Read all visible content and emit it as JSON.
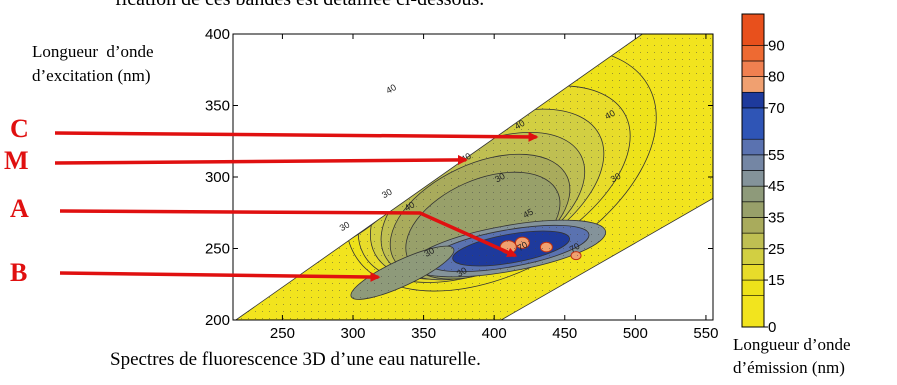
{
  "page": {
    "top_text": "fication de ces bandes est détaillée ci-dessous.",
    "caption": "Spectres de fluorescence 3D d’une eau naturelle."
  },
  "chart_data": {
    "type": "heatmap",
    "title": "",
    "ylabel": [
      "Longueur  d’onde",
      "d’excitation (nm)"
    ],
    "xlabel": [
      "Longueur d’onde",
      "d’émission (nm)"
    ],
    "xlim": [
      215,
      555
    ],
    "ylim": [
      200,
      400
    ],
    "x_ticks": [
      250,
      300,
      350,
      400,
      450,
      500,
      550
    ],
    "y_ticks": [
      200,
      250,
      300,
      350,
      400
    ],
    "colorbar": {
      "ticks": [
        0,
        15,
        25,
        35,
        45,
        55,
        70,
        80,
        90
      ],
      "levels": [
        0,
        10,
        15,
        20,
        25,
        30,
        35,
        40,
        45,
        50,
        55,
        60,
        70,
        75,
        80,
        85,
        90,
        100
      ],
      "colors": [
        "#f2e41e",
        "#eee21a",
        "#e8dc2a",
        "#d2cf42",
        "#bfbf52",
        "#a9ab5c",
        "#98a06a",
        "#8e9a7a",
        "#84939a",
        "#7486a4",
        "#5a72b0",
        "#2f55b6",
        "#1e3a9c",
        "#f0a070",
        "#f08050",
        "#ee6a32",
        "#e8501c"
      ]
    },
    "measured_region": [
      [
        217,
        200
      ],
      [
        505,
        400
      ],
      [
        555,
        400
      ],
      [
        555,
        285
      ],
      [
        405,
        200
      ]
    ],
    "contour_labels": [
      "40",
      "40",
      "40",
      "40",
      "30",
      "30",
      "30",
      "30",
      "30",
      "30",
      "40",
      "45",
      "70",
      "70"
    ],
    "peaks": [
      {
        "name": "C",
        "x": 430,
        "y": 328
      },
      {
        "name": "M",
        "x": 380,
        "y": 312
      },
      {
        "name": "A",
        "x": 415,
        "y": 245
      },
      {
        "name": "B",
        "x": 318,
        "y": 230
      }
    ]
  }
}
